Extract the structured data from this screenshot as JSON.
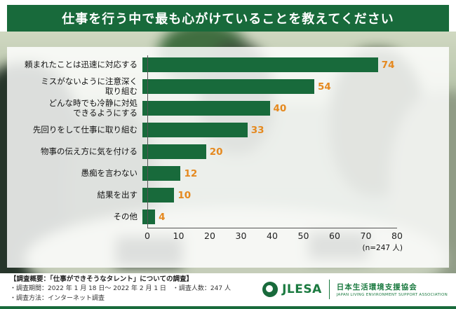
{
  "header": {
    "title": "仕事を行う中で最も心がけていることを教えてください"
  },
  "chart_data": {
    "type": "bar",
    "orientation": "horizontal",
    "title": "仕事を行う中で最も心がけていることを教えてください",
    "categories": [
      "頼まれたことは迅速に対応する",
      "ミスがないように注意深く\n取り組む",
      "どんな時でも冷静に対処\nできるようにする",
      "先回りをして仕事に取り組む",
      "物事の伝え方に気を付ける",
      "愚痴を言わない",
      "結果を出す",
      "その他"
    ],
    "values": [
      74,
      54,
      40,
      33,
      20,
      12,
      10,
      4
    ],
    "xlim": [
      0,
      80
    ],
    "xticks": [
      0,
      10,
      20,
      30,
      40,
      50,
      60,
      70,
      80
    ],
    "xlabel": "",
    "ylabel": "",
    "grid": false,
    "legend_position": "none",
    "sample_note": "(n=247 人)",
    "bar_color": "#186a3b",
    "value_label_color": "#e5891f"
  },
  "footer": {
    "survey_title": "【調査概要：「仕事ができそうなタレント」についての調査】",
    "line1": "・調査期間：2022 年 1 月 18 日～ 2022 年 2 月 1 日　・調査人数：247 人",
    "line2": "・調査方法：インターネット調査",
    "logo": {
      "name": "JLESA",
      "org_jp": "日本生活環境支援協会",
      "org_en": "JAPAN LIVING ENVIRONMENT SUPPORT ASSOCIATION"
    }
  }
}
